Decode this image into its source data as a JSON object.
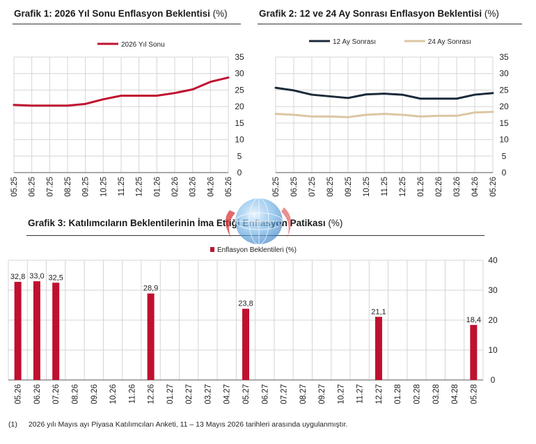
{
  "charts": {
    "c1": {
      "title": "Grafik 1: 2026 Yıl Sonu Enflasyon Beklentisi",
      "unit": "(%)"
    },
    "c2": {
      "title": "Grafik 2: 12 ve 24 Ay Sonrası Enflasyon Beklentisi",
      "unit": "(%)"
    },
    "c3": {
      "title": "Grafik 3: Katılımcıların Beklentilerinin İma Ettiği Enflasyon Patikası",
      "unit": "(%)"
    }
  },
  "footnote": {
    "number": "(1)",
    "text": "2026 yılı Mayıs ayı Piyasa Katılımcıları Anketi, 11 – 13 Mayıs 2026 tarihleri arasında uygulanmıştır."
  },
  "colors": {
    "red": "#c0102f",
    "navy": "#1b2a3a",
    "beige": "#dcc6a2",
    "grid": "#d4d4d4",
    "axis": "#555555"
  },
  "chart_data": [
    {
      "type": "line",
      "title": "Grafik 1: 2026 Yıl Sonu Enflasyon Beklentisi (%)",
      "categories": [
        "05.25",
        "06.25",
        "07.25",
        "08.25",
        "09.25",
        "10.25",
        "11.25",
        "12.25",
        "01.26",
        "02.26",
        "03.26",
        "04.26",
        "05.26"
      ],
      "series": [
        {
          "name": "2026 Yıl Sonu",
          "color": "#c0102f",
          "values": [
            20.5,
            20.3,
            20.3,
            20.3,
            20.8,
            22.2,
            23.3,
            23.3,
            23.3,
            24.1,
            25.2,
            27.5,
            28.8
          ]
        }
      ],
      "ylim": [
        0,
        35
      ],
      "yticks": [
        0,
        5,
        10,
        15,
        20,
        25,
        30,
        35
      ],
      "legend": "top-center",
      "grid": true
    },
    {
      "type": "line",
      "title": "Grafik 2: 12 ve 24 Ay Sonrası Enflasyon Beklentisi (%)",
      "categories": [
        "05.25",
        "06.25",
        "07.25",
        "08.25",
        "09.25",
        "10.25",
        "11.25",
        "12.25",
        "01.26",
        "02.26",
        "03.26",
        "04.26",
        "05.26"
      ],
      "series": [
        {
          "name": "12 Ay Sonrası",
          "color": "#1b2a3a",
          "values": [
            25.7,
            24.9,
            23.6,
            23.1,
            22.6,
            23.7,
            23.9,
            23.6,
            22.4,
            22.4,
            22.4,
            23.6,
            24.1
          ]
        },
        {
          "name": "24 Ay Sonrası",
          "color": "#dcc6a2",
          "values": [
            17.8,
            17.5,
            17.0,
            17.0,
            16.8,
            17.5,
            17.8,
            17.5,
            17.0,
            17.2,
            17.2,
            18.2,
            18.4
          ]
        }
      ],
      "ylim": [
        0,
        35
      ],
      "yticks": [
        0,
        5,
        10,
        15,
        20,
        25,
        30,
        35
      ],
      "legend": "top-center",
      "grid": true
    },
    {
      "type": "bar",
      "title": "Grafik 3: Katılımcıların Beklentilerinin İma Ettiği Enflasyon Patikası (%)",
      "categories": [
        "05.26",
        "06.26",
        "07.26",
        "08.26",
        "09.26",
        "10.26",
        "11.26",
        "12.26",
        "01.27",
        "02.27",
        "03.27",
        "04.27",
        "05.27",
        "06.27",
        "07.27",
        "08.27",
        "09.27",
        "10.27",
        "11.27",
        "12.27",
        "01.28",
        "02.28",
        "03.28",
        "04.28",
        "05.28"
      ],
      "series": [
        {
          "name": "Enflasyon Beklentileri (%)",
          "color": "#c0102f",
          "values": [
            32.8,
            33.0,
            32.5,
            null,
            null,
            null,
            null,
            28.9,
            null,
            null,
            null,
            null,
            23.8,
            null,
            null,
            null,
            null,
            null,
            null,
            21.1,
            null,
            null,
            null,
            null,
            18.4
          ],
          "labels": [
            "32,8",
            "33,0",
            "32,5",
            "",
            "",
            "",
            "",
            "28,9",
            "",
            "",
            "",
            "",
            "23,8",
            "",
            "",
            "",
            "",
            "",
            "",
            "21,1",
            "",
            "",
            "",
            "",
            "18,4"
          ]
        }
      ],
      "ylim": [
        0,
        40
      ],
      "yticks": [
        0,
        10,
        20,
        30,
        40
      ],
      "legend": "top-center",
      "grid": true
    }
  ]
}
